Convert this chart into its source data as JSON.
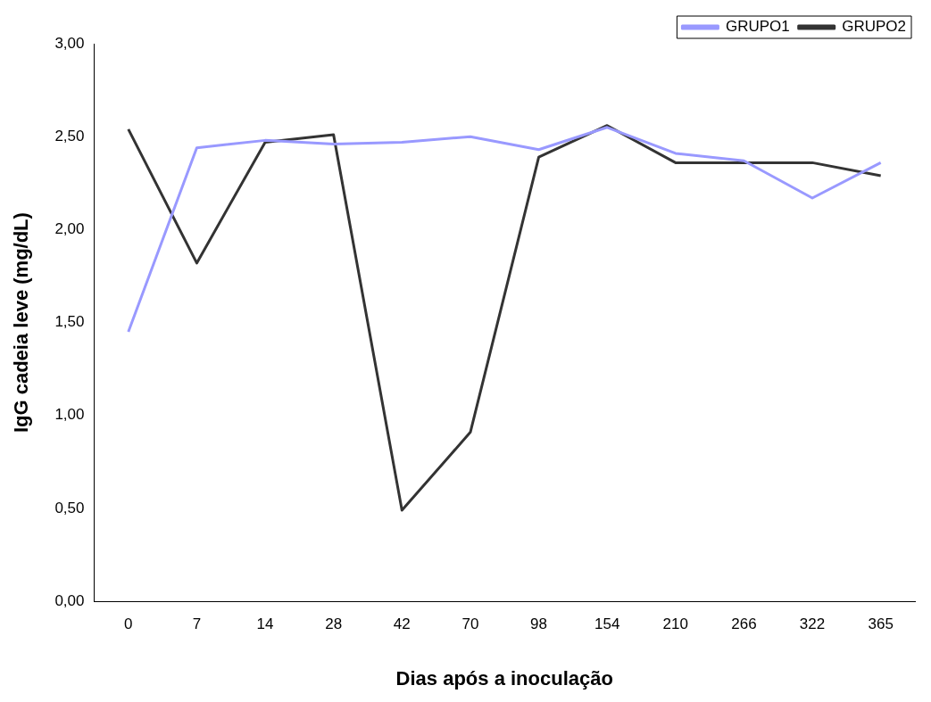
{
  "chart_data": {
    "type": "line",
    "xlabel": "Dias após a inoculação",
    "ylabel": "IgG cadeia leve (mg/dL)",
    "categories": [
      "0",
      "7",
      "14",
      "28",
      "42",
      "70",
      "98",
      "154",
      "210",
      "266",
      "322",
      "365"
    ],
    "series": [
      {
        "name": "GRUPO1",
        "color": "#9999ff",
        "values": [
          1.45,
          2.44,
          2.48,
          2.46,
          2.47,
          2.5,
          2.43,
          2.55,
          2.41,
          2.37,
          2.17,
          2.36
        ]
      },
      {
        "name": "GRUPO2",
        "color": "#333333",
        "values": [
          2.54,
          1.82,
          2.47,
          2.51,
          0.49,
          0.91,
          2.39,
          2.56,
          2.36,
          2.36,
          2.36,
          2.29
        ]
      }
    ],
    "ylim": [
      0,
      3
    ],
    "yticks": [
      {
        "value": 0,
        "label": "0,00"
      },
      {
        "value": 0.5,
        "label": "0,50"
      },
      {
        "value": 1,
        "label": "1,00"
      },
      {
        "value": 1.5,
        "label": "1,50"
      },
      {
        "value": 2,
        "label": "2,00"
      },
      {
        "value": 2.5,
        "label": "2,50"
      },
      {
        "value": 3,
        "label": "3,00"
      }
    ],
    "grid": false,
    "legend": "top right",
    "marker": "none",
    "line_style": "solid"
  }
}
